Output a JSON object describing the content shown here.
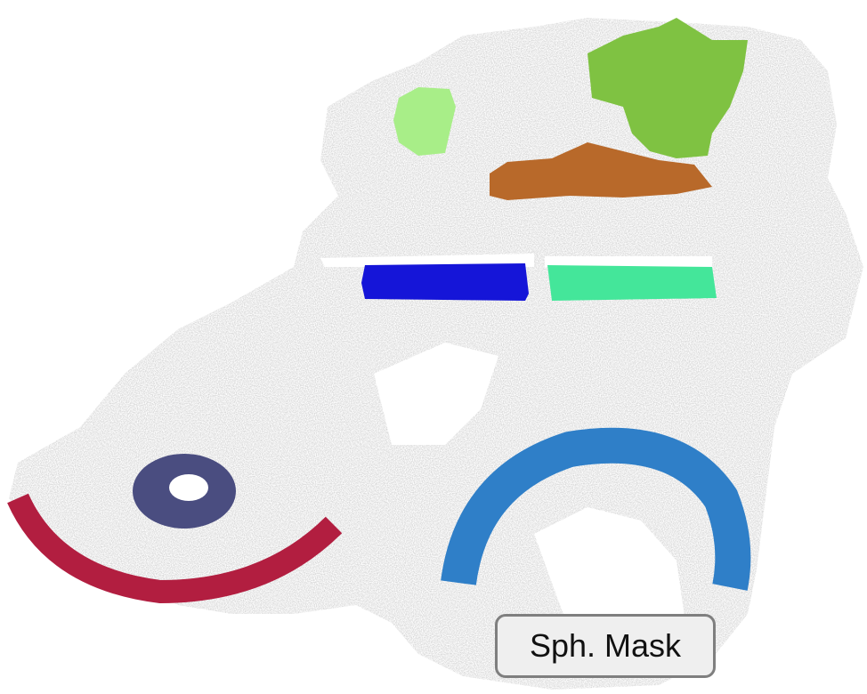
{
  "label": {
    "text": "Sph. Mask"
  },
  "colors": {
    "background": "#ffffff",
    "scene_gray": "#d9d9d9",
    "label_box_fill": "#efefef",
    "label_box_border": "#7f7f7f"
  },
  "segments": [
    {
      "name": "light-green-object",
      "color": "#a8ee88"
    },
    {
      "name": "green-plant-object",
      "color": "#7fc242"
    },
    {
      "name": "brown-shelf-object",
      "color": "#b8692a"
    },
    {
      "name": "blue-box-object",
      "color": "#1515d8"
    },
    {
      "name": "mint-box-object",
      "color": "#44e69a"
    },
    {
      "name": "dark-ring-object",
      "color": "#4a4d80"
    },
    {
      "name": "red-arc-object",
      "color": "#b21e40"
    },
    {
      "name": "light-blue-arc-object",
      "color": "#2f7fc8"
    }
  ]
}
